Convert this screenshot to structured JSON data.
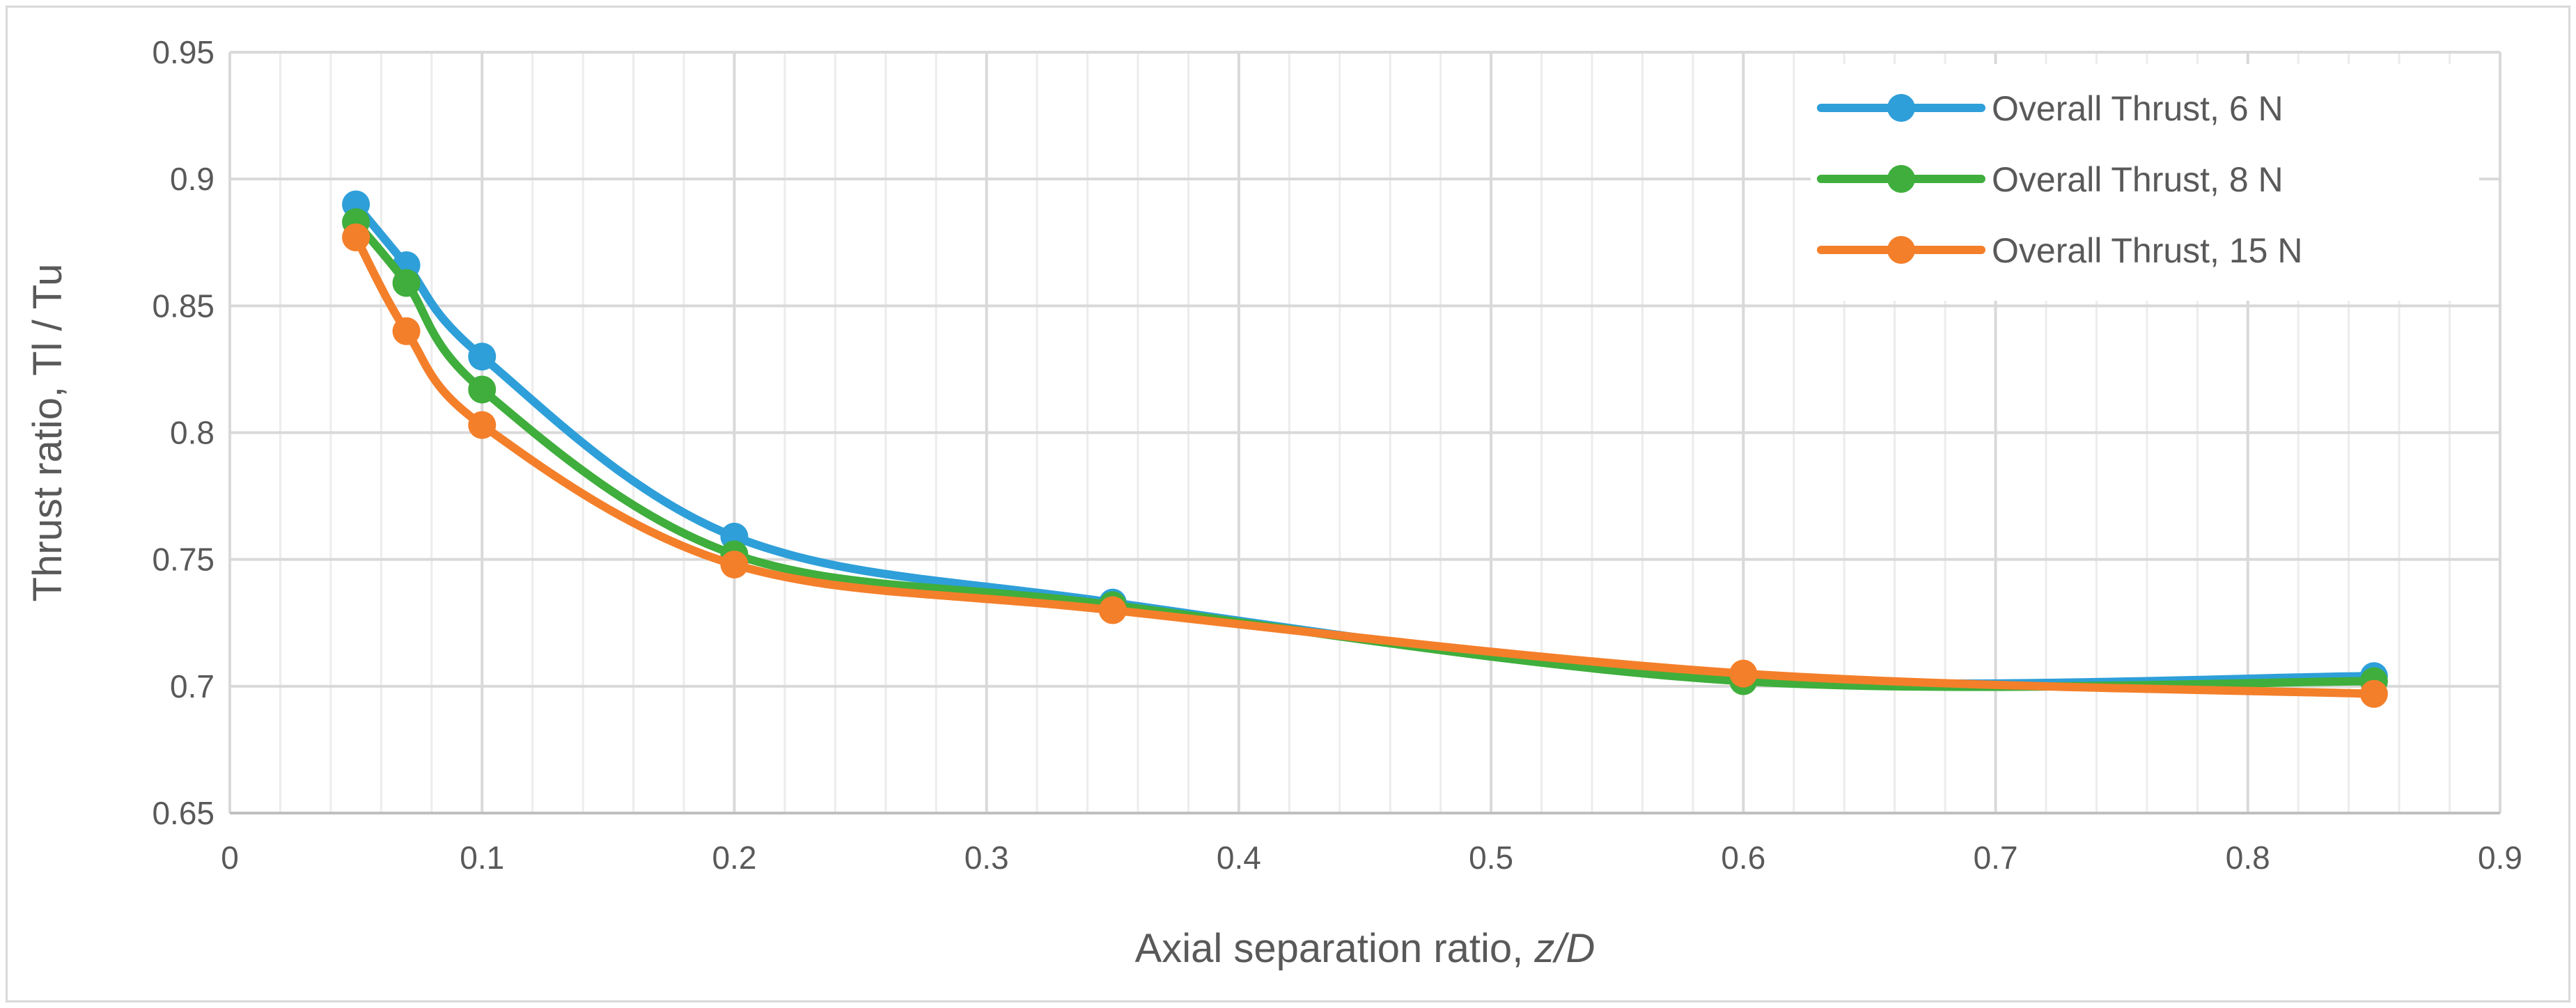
{
  "chart_data": {
    "type": "line",
    "smooth": true,
    "title": "",
    "xlabel": "Axial separation ratio, z/D",
    "xlabel_parts": [
      "Axial separation ratio, ",
      "z/D"
    ],
    "ylabel": "Thrust ratio, Tl / Tu",
    "xlim": [
      0,
      0.9
    ],
    "ylim": [
      0.65,
      0.95
    ],
    "x_ticks": [
      "0",
      "0.1",
      "0.2",
      "0.3",
      "0.4",
      "0.5",
      "0.6",
      "0.7",
      "0.8",
      "0.9"
    ],
    "y_ticks": [
      "0.65",
      "0.7",
      "0.75",
      "0.8",
      "0.85",
      "0.9",
      "0.95"
    ],
    "grid": {
      "major": true,
      "minor_x": true
    },
    "legend_position": "top-right",
    "x": [
      0.05,
      0.07,
      0.1,
      0.2,
      0.35,
      0.6,
      0.85
    ],
    "series": [
      {
        "name": "Overall Thrust, 6 N",
        "color": "#2e9fd9",
        "values": [
          0.89,
          0.866,
          0.83,
          0.759,
          0.733,
          0.703,
          0.704
        ]
      },
      {
        "name": "Overall Thrust, 8 N",
        "color": "#3fae3c",
        "values": [
          0.883,
          0.859,
          0.817,
          0.752,
          0.732,
          0.702,
          0.702
        ]
      },
      {
        "name": "Overall Thrust, 15 N",
        "color": "#f47f2a",
        "values": [
          0.877,
          0.84,
          0.803,
          0.748,
          0.73,
          0.705,
          0.697
        ]
      }
    ]
  }
}
